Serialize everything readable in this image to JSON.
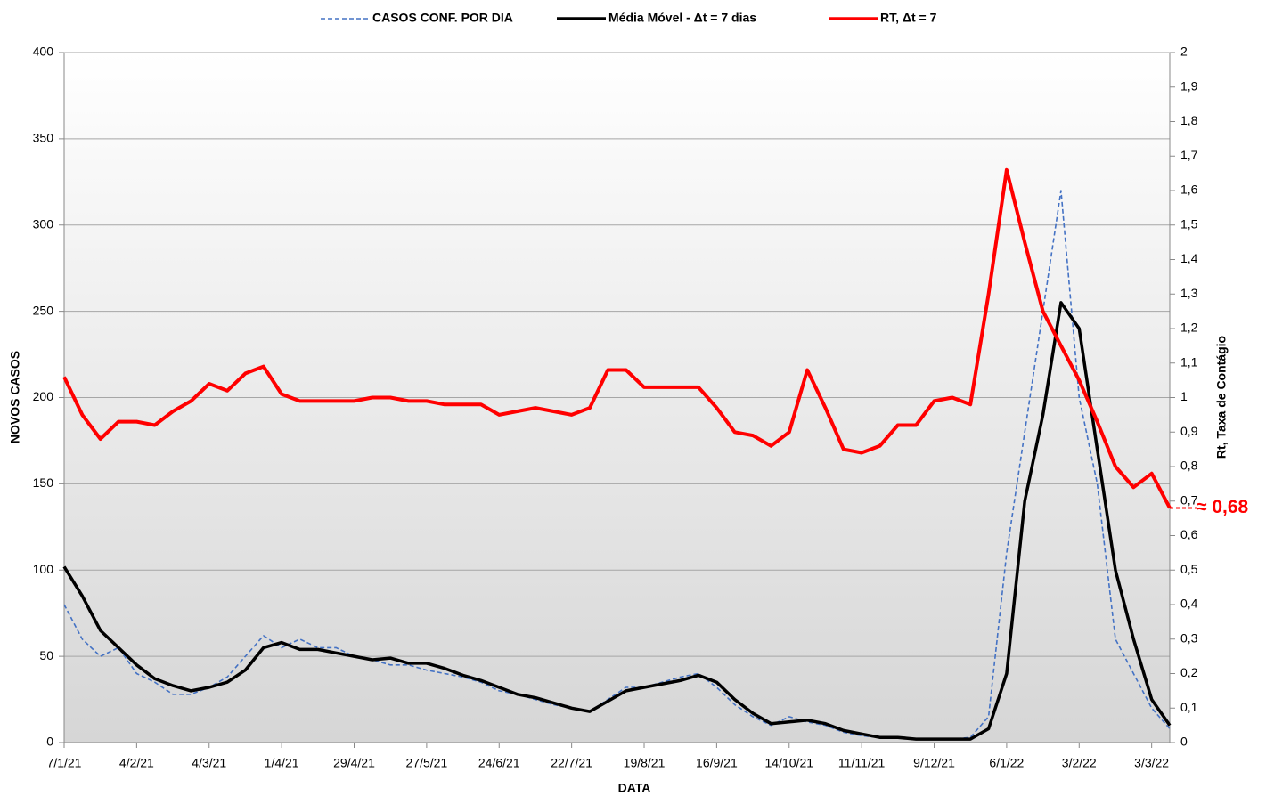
{
  "chart_data": {
    "type": "line",
    "legend": "top",
    "grid": true,
    "x_label": "DATA",
    "y_label": "NOVOS CASOS",
    "y2_label": "Rt, Taxa de Contágio",
    "annotation": "≈ 0,68",
    "categories": [
      "7/1/21",
      null,
      null,
      null,
      "4/2/21",
      null,
      null,
      null,
      "4/3/21",
      null,
      null,
      null,
      "1/4/21",
      null,
      null,
      null,
      "29/4/21",
      null,
      null,
      null,
      "27/5/21",
      null,
      null,
      null,
      "24/6/21",
      null,
      null,
      null,
      "22/7/21",
      null,
      null,
      null,
      "19/8/21",
      null,
      null,
      null,
      "16/9/21",
      null,
      null,
      null,
      "14/10/21",
      null,
      null,
      null,
      "11/11/21",
      null,
      null,
      null,
      "9/12/21",
      null,
      null,
      null,
      "6/1/22",
      null,
      null,
      null,
      "3/2/22",
      null,
      null,
      null,
      "3/3/22",
      null
    ],
    "series": [
      {
        "name": "CASOS CONF. POR DIA",
        "color": "#4472c4",
        "dashed": true,
        "values": [
          80,
          60,
          50,
          55,
          40,
          35,
          28,
          28,
          32,
          38,
          50,
          62,
          55,
          60,
          55,
          55,
          50,
          48,
          45,
          45,
          42,
          40,
          38,
          35,
          30,
          28,
          25,
          22,
          20,
          18,
          25,
          32,
          32,
          35,
          38,
          40,
          32,
          22,
          15,
          10,
          15,
          12,
          10,
          6,
          4,
          3,
          3,
          2,
          2,
          2,
          3,
          15,
          110,
          180,
          250,
          320,
          200,
          150,
          60,
          40,
          20,
          8
        ]
      },
      {
        "name": "Média Móvel - Δt = 7 dias",
        "color": "#000000",
        "values": [
          102,
          85,
          65,
          55,
          45,
          37,
          33,
          30,
          32,
          35,
          42,
          55,
          58,
          54,
          54,
          52,
          50,
          48,
          49,
          46,
          46,
          43,
          39,
          36,
          32,
          28,
          26,
          23,
          20,
          18,
          24,
          30,
          32,
          34,
          36,
          39,
          35,
          25,
          17,
          11,
          12,
          13,
          11,
          7,
          5,
          3,
          3,
          2,
          2,
          2,
          2,
          8,
          40,
          140,
          190,
          255,
          240,
          170,
          100,
          60,
          25,
          10
        ]
      },
      {
        "name": "RT, Δt = 7",
        "color": "#ff0000",
        "axis": "y2",
        "values": [
          1.06,
          0.95,
          0.88,
          0.93,
          0.93,
          0.92,
          0.96,
          0.99,
          1.04,
          1.02,
          1.07,
          1.09,
          1.01,
          0.99,
          0.99,
          0.99,
          0.99,
          1.0,
          1.0,
          0.99,
          0.99,
          0.98,
          0.98,
          0.98,
          0.95,
          0.96,
          0.97,
          0.96,
          0.95,
          0.97,
          1.08,
          1.08,
          1.03,
          1.03,
          1.03,
          1.03,
          0.97,
          0.9,
          0.89,
          0.86,
          0.9,
          1.08,
          0.97,
          0.85,
          0.84,
          0.86,
          0.92,
          0.92,
          0.99,
          1.0,
          0.98,
          1.3,
          1.66,
          1.45,
          1.25,
          1.15,
          1.05,
          0.93,
          0.8,
          0.74,
          0.78,
          0.68
        ]
      }
    ],
    "ylim": [
      0,
      400
    ],
    "yticks": [
      0,
      50,
      100,
      150,
      200,
      250,
      300,
      350,
      400
    ],
    "y2lim": [
      0,
      2
    ],
    "y2ticks": [
      0,
      {
        "value": 0.1,
        "label": "0,1"
      },
      {
        "value": 0.2,
        "label": "0,2"
      },
      {
        "value": 0.3,
        "label": "0,3"
      },
      {
        "value": 0.4,
        "label": "0,4"
      },
      {
        "value": 0.5,
        "label": "0,5"
      },
      {
        "value": 0.6,
        "label": "0,6"
      },
      {
        "value": 0.7,
        "label": "0,7"
      },
      {
        "value": 0.8,
        "label": "0,8"
      },
      {
        "value": 0.9,
        "label": "0,9"
      },
      1,
      {
        "value": 1.1,
        "label": "1,1"
      },
      {
        "value": 1.2,
        "label": "1,2"
      },
      {
        "value": 1.3,
        "label": "1,3"
      },
      {
        "value": 1.4,
        "label": "1,4"
      },
      {
        "value": 1.5,
        "label": "1,5"
      },
      {
        "value": 1.6,
        "label": "1,6"
      },
      {
        "value": 1.7,
        "label": "1,7"
      },
      {
        "value": 1.8,
        "label": "1,8"
      },
      {
        "value": 1.9,
        "label": "1,9"
      },
      2
    ]
  }
}
